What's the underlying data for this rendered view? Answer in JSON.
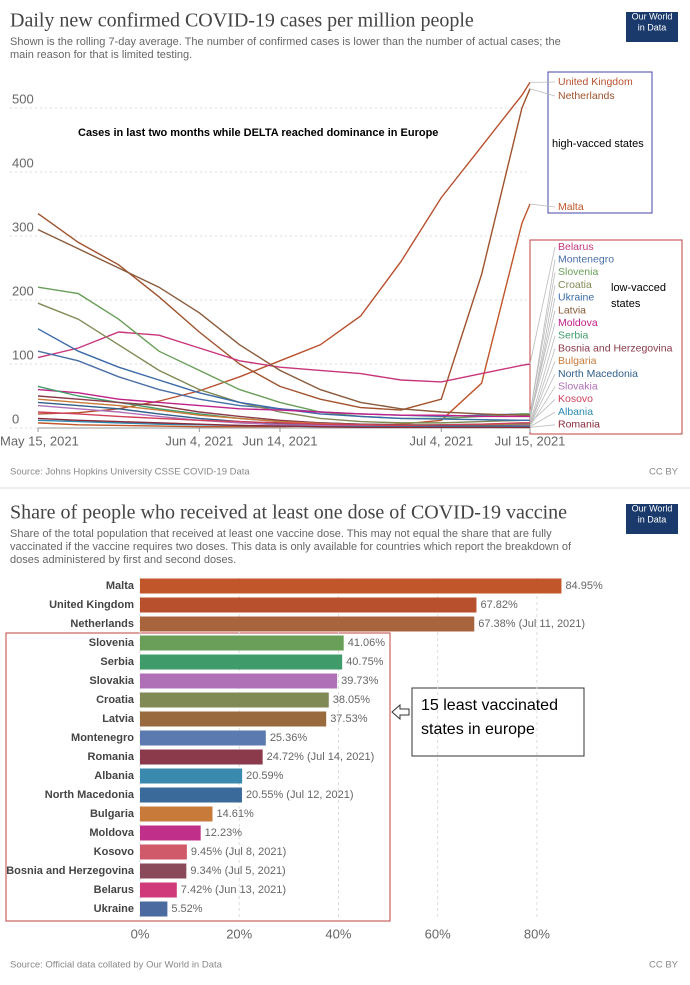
{
  "chart_data": [
    {
      "type": "line",
      "title": "Daily new confirmed COVID-19 cases per million people",
      "subtitle": [
        "Shown is the rolling 7-day average. The number of confirmed cases is lower than the number of actual cases; the",
        "main reason for that is limited testing."
      ],
      "logo": [
        "Our World",
        "in Data"
      ],
      "source": "Source: Johns Hopkins University CSSE COVID-19 Data",
      "license": "CC BY",
      "annotations": [
        "Cases in last two months while DELTA reached dominance in Europe",
        "high-vacced states",
        "low-vacced",
        "states"
      ],
      "x": [
        "2021-05-15",
        "2021-05-20",
        "2021-05-25",
        "2021-05-30",
        "2021-06-04",
        "2021-06-09",
        "2021-06-14",
        "2021-06-19",
        "2021-06-24",
        "2021-06-29",
        "2021-07-04",
        "2021-07-09",
        "2021-07-14",
        "2021-07-15"
      ],
      "xlim": [
        "2021-05-15",
        "2021-07-15"
      ],
      "xticks": [
        {
          "value": "2021-05-15",
          "label": "May 15, 2021"
        },
        {
          "value": "2021-06-04",
          "label": "Jun 4, 2021"
        },
        {
          "value": "2021-06-14",
          "label": "Jun 14, 2021"
        },
        {
          "value": "2021-07-04",
          "label": "Jul 4, 2021"
        },
        {
          "value": "2021-07-15",
          "label": "Jul 15, 2021"
        }
      ],
      "ylim": [
        0,
        550
      ],
      "yticks": [
        0,
        100,
        200,
        300,
        400,
        500
      ],
      "grid": true,
      "series": [
        {
          "name": "United Kingdom",
          "color": "#b8502e",
          "values": [
            22,
            24,
            30,
            42,
            58,
            80,
            105,
            130,
            175,
            260,
            360,
            440,
            520,
            540
          ]
        },
        {
          "name": "Netherlands",
          "color": "#a0522d",
          "values": [
            335,
            290,
            255,
            205,
            150,
            100,
            65,
            45,
            32,
            28,
            45,
            240,
            500,
            530
          ]
        },
        {
          "name": "Malta",
          "color": "#c0562a",
          "values": [
            8,
            5,
            4,
            3,
            2,
            2,
            2,
            3,
            4,
            6,
            12,
            70,
            320,
            350
          ]
        },
        {
          "name": "Belarus",
          "color": "#c8367a",
          "values": [
            110,
            125,
            150,
            145,
            125,
            105,
            95,
            90,
            85,
            75,
            72,
            85,
            98,
            100
          ]
        },
        {
          "name": "Montenegro",
          "color": "#4a6fa8",
          "values": [
            120,
            105,
            80,
            60,
            45,
            35,
            30,
            25,
            22,
            20,
            18,
            20,
            22,
            22
          ]
        },
        {
          "name": "Slovenia",
          "color": "#6a9f5a",
          "values": [
            220,
            210,
            170,
            120,
            90,
            60,
            40,
            25,
            18,
            15,
            15,
            18,
            22,
            22
          ]
        },
        {
          "name": "Croatia",
          "color": "#7f8a55",
          "values": [
            195,
            170,
            130,
            90,
            60,
            40,
            25,
            15,
            10,
            8,
            8,
            10,
            12,
            12
          ]
        },
        {
          "name": "Ukraine",
          "color": "#3a6aa8",
          "values": [
            155,
            120,
            95,
            75,
            55,
            40,
            30,
            22,
            18,
            15,
            14,
            13,
            12,
            12
          ]
        },
        {
          "name": "Latvia",
          "color": "#8a5a3a",
          "values": [
            310,
            280,
            250,
            220,
            180,
            130,
            90,
            60,
            40,
            30,
            25,
            22,
            20,
            20
          ]
        },
        {
          "name": "Moldova",
          "color": "#c0208a",
          "values": [
            60,
            55,
            45,
            40,
            35,
            30,
            28,
            25,
            22,
            20,
            20,
            18,
            18,
            18
          ]
        },
        {
          "name": "Serbia",
          "color": "#3f9c6a",
          "values": [
            65,
            50,
            40,
            30,
            22,
            15,
            10,
            8,
            6,
            5,
            5,
            6,
            7,
            7
          ]
        },
        {
          "name": "Bosnia and Herzegovina",
          "color": "#8a3a4a",
          "values": [
            50,
            45,
            40,
            35,
            25,
            18,
            12,
            8,
            6,
            5,
            4,
            4,
            4,
            4
          ]
        },
        {
          "name": "Bulgaria",
          "color": "#c87a3a",
          "values": [
            45,
            40,
            35,
            28,
            20,
            15,
            10,
            7,
            5,
            4,
            4,
            4,
            5,
            5
          ]
        },
        {
          "name": "North Macedonia",
          "color": "#2f5f8a",
          "values": [
            40,
            35,
            30,
            22,
            15,
            10,
            7,
            5,
            4,
            3,
            3,
            3,
            4,
            4
          ]
        },
        {
          "name": "Slovakia",
          "color": "#b070b8",
          "values": [
            35,
            30,
            25,
            18,
            12,
            8,
            5,
            4,
            3,
            2,
            2,
            2,
            3,
            3
          ]
        },
        {
          "name": "Kosovo",
          "color": "#d0405a",
          "values": [
            25,
            22,
            18,
            15,
            12,
            10,
            8,
            6,
            5,
            4,
            5,
            6,
            8,
            8
          ]
        },
        {
          "name": "Albania",
          "color": "#2a8ab0",
          "values": [
            12,
            10,
            8,
            6,
            5,
            4,
            3,
            2,
            2,
            2,
            2,
            2,
            2,
            2
          ]
        },
        {
          "name": "Romania",
          "color": "#8a2a3a",
          "values": [
            15,
            12,
            10,
            8,
            6,
            4,
            3,
            2,
            1,
            1,
            1,
            1,
            1,
            1
          ]
        }
      ]
    },
    {
      "type": "bar",
      "title": "Share of people who received at least one dose of COVID-19 vaccine",
      "subtitle": [
        "Share of the total population that received at least one vaccine dose. This may not equal the share that are fully",
        "vaccinated if the vaccine requires two doses. This data is only available for countries which report the breakdown of",
        "doses administered by first and second doses."
      ],
      "logo": [
        "Our World",
        "in Data"
      ],
      "source": "Source: Official data collated by Our World in Data",
      "license": "CC BY",
      "annotations": [
        "15 least vaccinated",
        "states in europe"
      ],
      "categories": [
        "Malta",
        "United Kingdom",
        "Netherlands",
        "Slovenia",
        "Serbia",
        "Slovakia",
        "Croatia",
        "Latvia",
        "Montenegro",
        "Romania",
        "Albania",
        "North Macedonia",
        "Bulgaria",
        "Moldova",
        "Kosovo",
        "Bosnia and Herzegovina",
        "Belarus",
        "Ukraine"
      ],
      "values": [
        84.95,
        67.82,
        67.38,
        41.06,
        40.75,
        39.73,
        38.05,
        37.53,
        25.36,
        24.72,
        20.59,
        20.55,
        14.61,
        12.23,
        9.45,
        9.34,
        7.42,
        5.52
      ],
      "value_labels": [
        "84.95%",
        "67.82%",
        "67.38% (Jul 11, 2021)",
        "41.06%",
        "40.75%",
        "39.73%",
        "38.05%",
        "37.53%",
        "25.36%",
        "24.72% (Jul 14, 2021)",
        "20.59%",
        "20.55% (Jul 12, 2021)",
        "14.61%",
        "12.23%",
        "9.45% (Jul 8, 2021)",
        "9.34% (Jul 5, 2021)",
        "7.42% (Jun 13, 2021)",
        "5.52%"
      ],
      "colors": [
        "#c0562a",
        "#b8502e",
        "#a8643c",
        "#6a9f5a",
        "#3f9c6a",
        "#b070b8",
        "#7f8a55",
        "#9a6a3f",
        "#5a7ab0",
        "#8a3a4a",
        "#3a8ab0",
        "#3a6a9a",
        "#c87a3a",
        "#c0308a",
        "#d05a6a",
        "#8a4a5a",
        "#d03a7a",
        "#4a6aa0"
      ],
      "xlim": [
        0,
        90
      ],
      "xticks": [
        {
          "value": 0,
          "label": "0%"
        },
        {
          "value": 20,
          "label": "20%"
        },
        {
          "value": 40,
          "label": "40%"
        },
        {
          "value": 60,
          "label": "60%"
        },
        {
          "value": 80,
          "label": "80%"
        }
      ],
      "grid": true
    }
  ]
}
